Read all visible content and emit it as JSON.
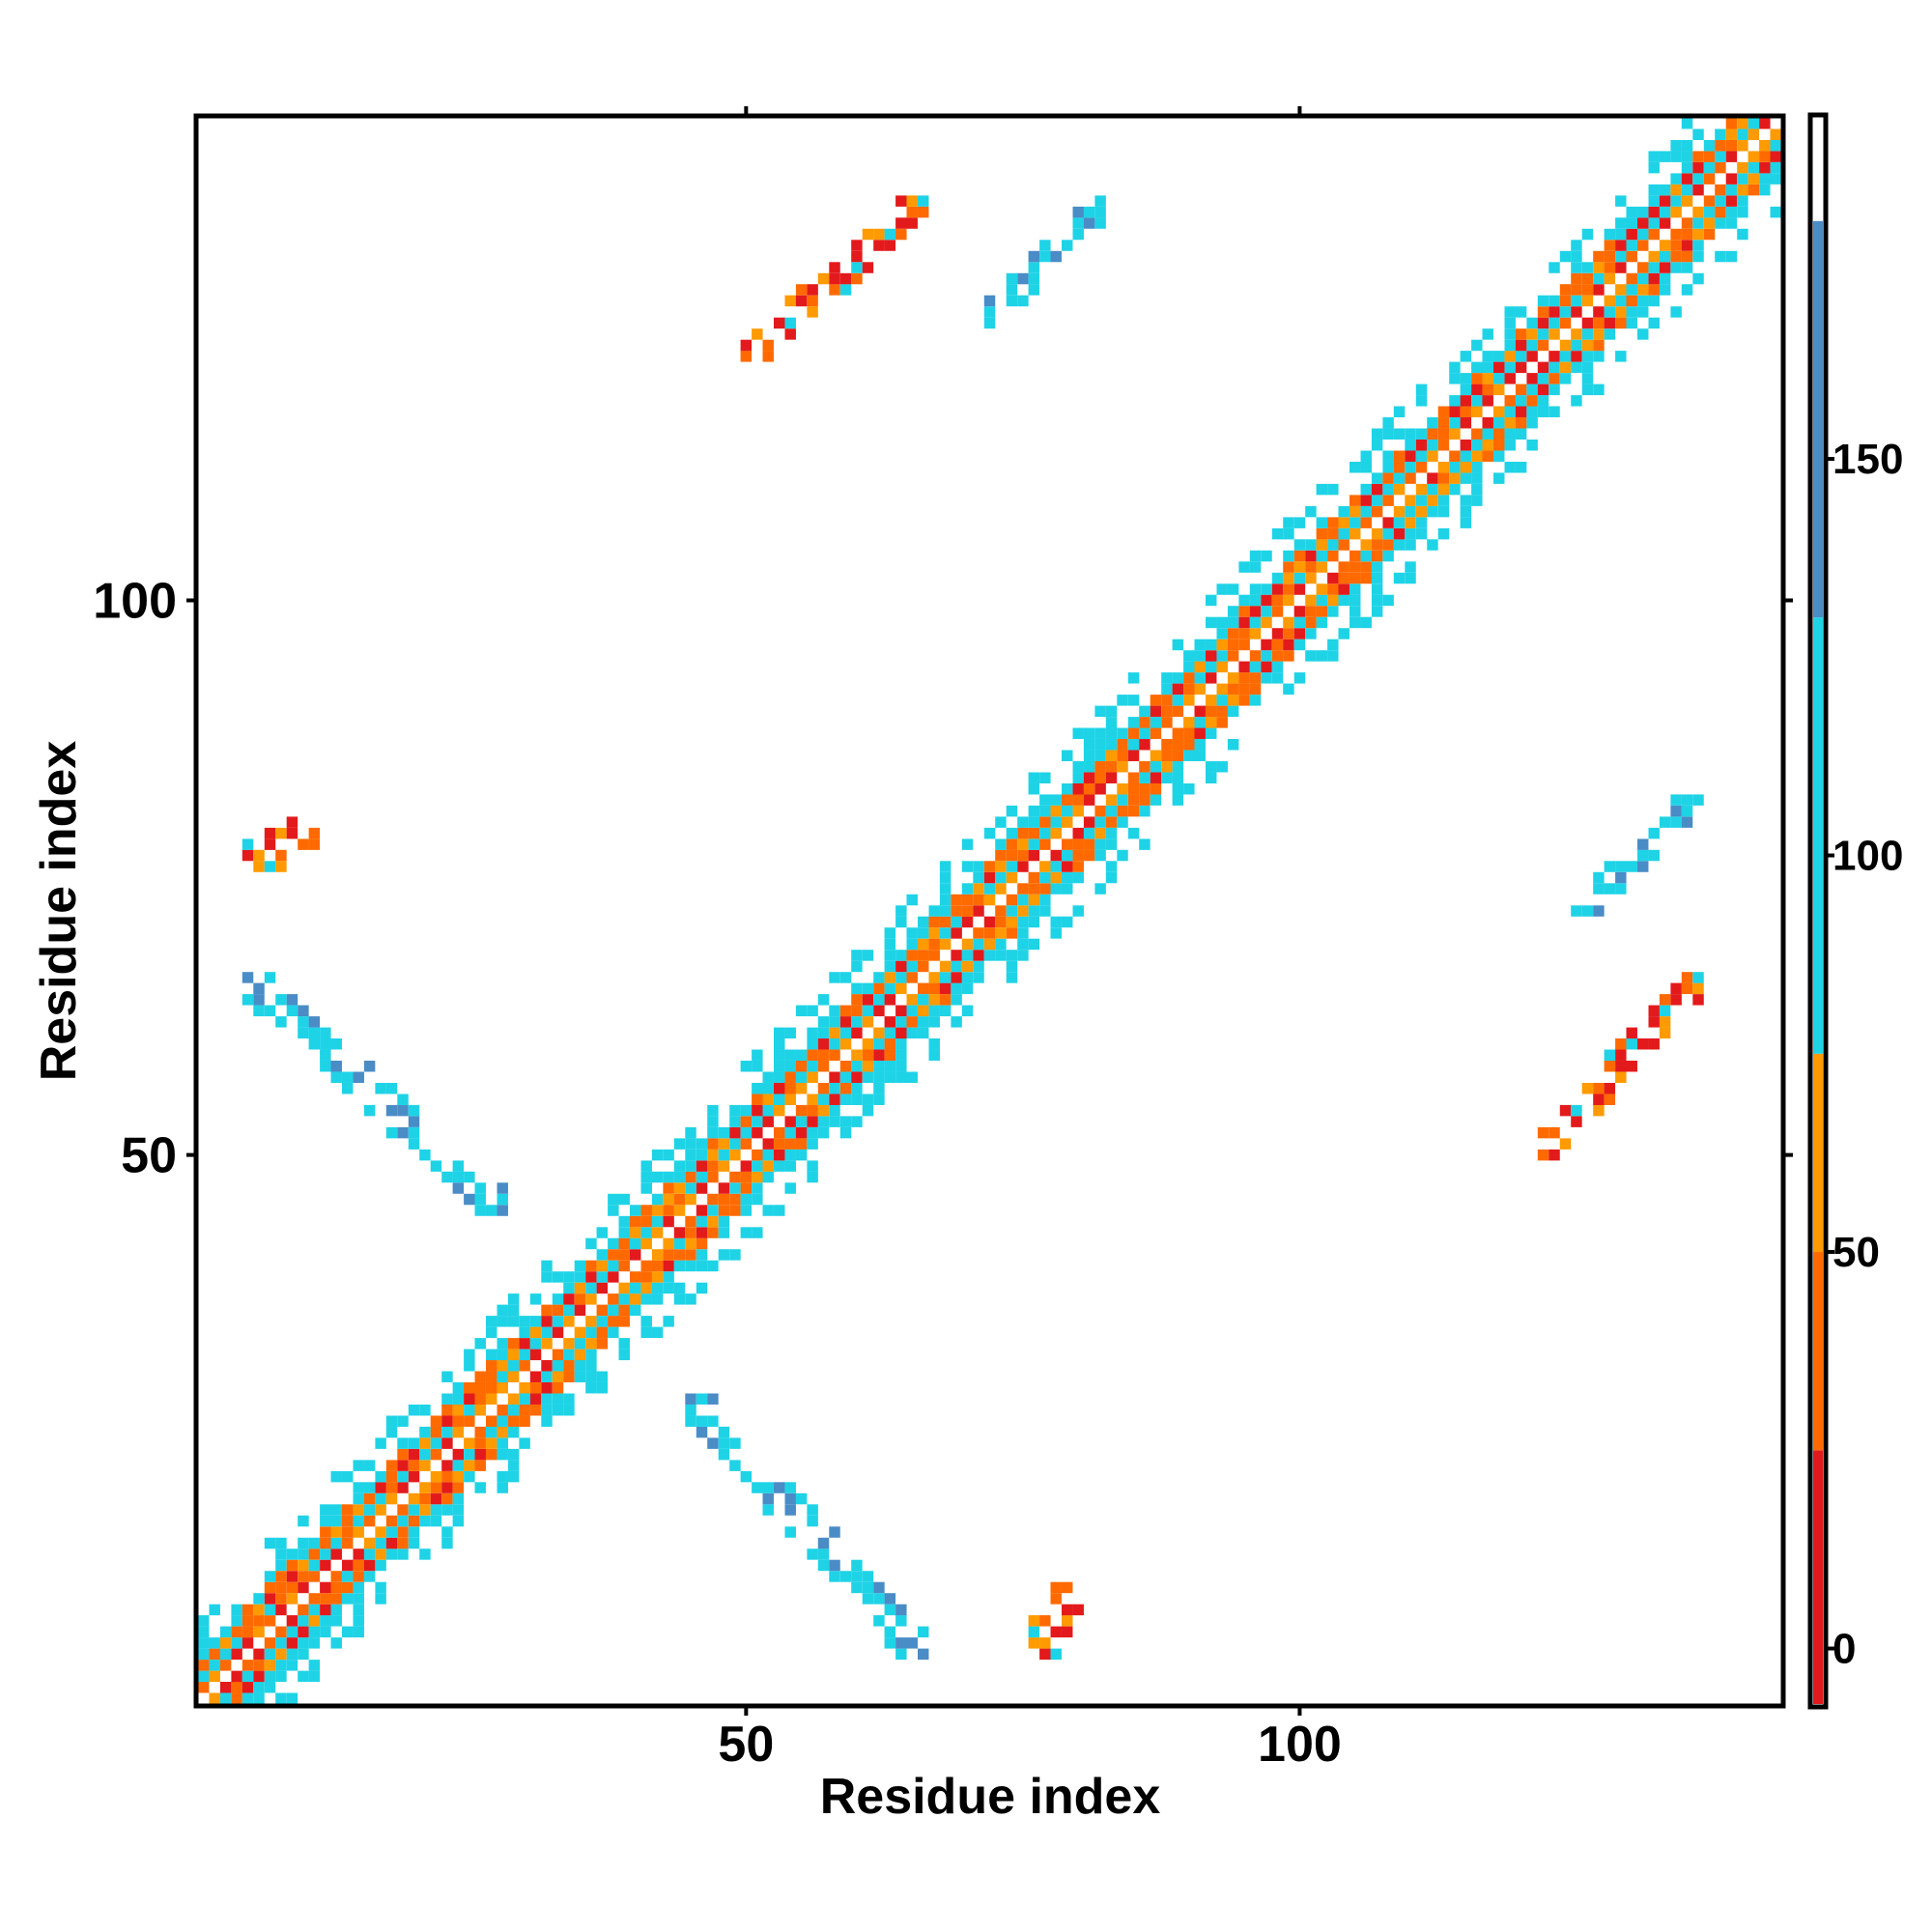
{
  "chart_data": {
    "type": "heatmap",
    "title": "",
    "xlabel": "Residue index",
    "ylabel": "Residue index",
    "xlim": [
      0.5,
      143.5
    ],
    "ylim": [
      0.5,
      143.5
    ],
    "x_ticks": [
      50,
      100
    ],
    "y_ticks": [
      50,
      100
    ],
    "x_tick_labels": [
      "50",
      "100"
    ],
    "y_tick_labels": [
      "50",
      "100"
    ],
    "grid": false,
    "colorbar": {
      "position": "right",
      "ticks": [
        0,
        50,
        100,
        150
      ],
      "tick_labels": [
        "0",
        "50",
        "100",
        "150"
      ],
      "range": [
        -7,
        193
      ],
      "bands": [
        {
          "from": -7,
          "to": 25,
          "color": "#e31a1c"
        },
        {
          "from": 25,
          "to": 50,
          "color": "#ff6a00"
        },
        {
          "from": 50,
          "to": 75,
          "color": "#ff9a00"
        },
        {
          "from": 75,
          "to": 130,
          "color": "#1fd3e6"
        },
        {
          "from": 130,
          "to": 180,
          "color": "#4a8cc6"
        },
        {
          "from": 180,
          "to": 193,
          "color": "#ffffff"
        }
      ]
    },
    "diagonal_band_half_width": 8,
    "contact_regions": [
      {
        "i_range": [
          5,
          36
        ],
        "j_range": [
          5,
          36
        ],
        "kind": "helix-diagonal"
      },
      {
        "i_range": [
          38,
          67
        ],
        "j_range": [
          38,
          67
        ],
        "kind": "helix-diagonal"
      },
      {
        "i_range": [
          68,
          100
        ],
        "j_range": [
          68,
          100
        ],
        "kind": "helix-diagonal"
      },
      {
        "i_range": [
          101,
          143
        ],
        "j_range": [
          101,
          143
        ],
        "kind": "helix-diagonal"
      },
      {
        "i_range": [
          50,
          66
        ],
        "j_range": [
          122,
          136
        ],
        "kind": "off-diagonal warm"
      },
      {
        "i_range": [
          72,
          82
        ],
        "j_range": [
          125,
          136
        ],
        "kind": "off-diagonal cool"
      },
      {
        "i_range": [
          5,
          28
        ],
        "j_range": [
          45,
          66
        ],
        "kind": "off-diagonal cool"
      },
      {
        "i_range": [
          5,
          11
        ],
        "j_range": [
          76,
          80
        ],
        "kind": "off-diagonal warm"
      }
    ]
  }
}
